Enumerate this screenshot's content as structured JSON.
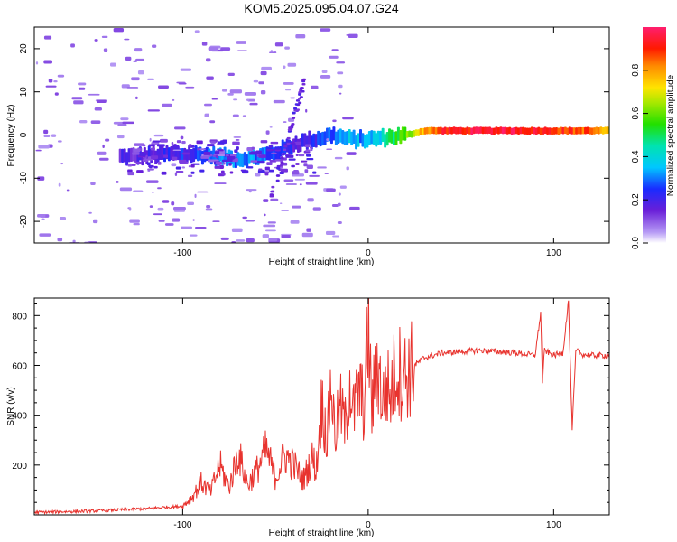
{
  "figure_title": "KOM5.2025.095.04.07.G24",
  "chart_data": [
    {
      "type": "heatmap",
      "name": "spectrogram",
      "xlabel": "Height of straight line (km)",
      "ylabel": "Frequency (Hz)",
      "xlim": [
        -180,
        130
      ],
      "ylim": [
        -25,
        25
      ],
      "xticks": [
        -100,
        0,
        100
      ],
      "yticks": [
        -20,
        -10,
        0,
        10,
        20
      ],
      "colorbar": {
        "label": "Normalized spectral amplitude",
        "range": [
          0,
          1
        ],
        "ticks": [
          0.0,
          0.2,
          0.4,
          0.6,
          0.8
        ]
      },
      "ridge": {
        "x": [
          -130,
          -110,
          -90,
          -80,
          -70,
          -60,
          -50,
          -40,
          -30,
          -20,
          -10,
          0,
          10,
          20,
          30,
          40,
          60,
          80,
          100,
          120,
          130
        ],
        "freq": [
          -5,
          -4.5,
          -4.5,
          -5,
          -5.5,
          -5,
          -4,
          -2,
          -1,
          0,
          -1,
          -1,
          -0.5,
          0,
          1,
          1,
          1,
          1,
          1,
          1,
          1
        ],
        "amplitude": [
          0.15,
          0.2,
          0.25,
          0.3,
          0.28,
          0.3,
          0.25,
          0.2,
          0.2,
          0.3,
          0.35,
          0.3,
          0.45,
          0.6,
          0.8,
          0.9,
          0.95,
          0.95,
          0.9,
          0.85,
          0.7
        ]
      }
    },
    {
      "type": "line",
      "name": "snr",
      "xlabel": "Height of straight line (km)",
      "ylabel": "SNR (v/v)",
      "xlim": [
        -180,
        130
      ],
      "ylim": [
        0,
        870
      ],
      "xticks": [
        -100,
        0,
        100
      ],
      "yticks": [
        200,
        400,
        600,
        800
      ],
      "series": [
        {
          "name": "SNR",
          "color": "#e8332e",
          "x": [
            -180,
            -150,
            -120,
            -100,
            -95,
            -90,
            -85,
            -80,
            -75,
            -70,
            -65,
            -60,
            -55,
            -50,
            -45,
            -40,
            -35,
            -30,
            -28,
            -25,
            -22,
            -20,
            -18,
            -15,
            -12,
            -10,
            -8,
            -5,
            -2,
            0,
            2,
            5,
            8,
            10,
            12,
            15,
            20,
            25,
            30,
            40,
            50,
            60,
            70,
            80,
            90,
            93,
            94,
            95,
            100,
            105,
            108,
            110,
            112,
            115,
            120,
            130
          ],
          "y": [
            10,
            15,
            25,
            35,
            70,
            130,
            90,
            200,
            110,
            250,
            120,
            180,
            260,
            150,
            240,
            200,
            140,
            230,
            180,
            450,
            300,
            550,
            320,
            430,
            350,
            560,
            400,
            500,
            430,
            760,
            420,
            610,
            450,
            520,
            480,
            590,
            560,
            600,
            630,
            650,
            655,
            660,
            655,
            650,
            640,
            810,
            530,
            660,
            640,
            650,
            860,
            340,
            660,
            645,
            640,
            640
          ]
        }
      ]
    }
  ]
}
